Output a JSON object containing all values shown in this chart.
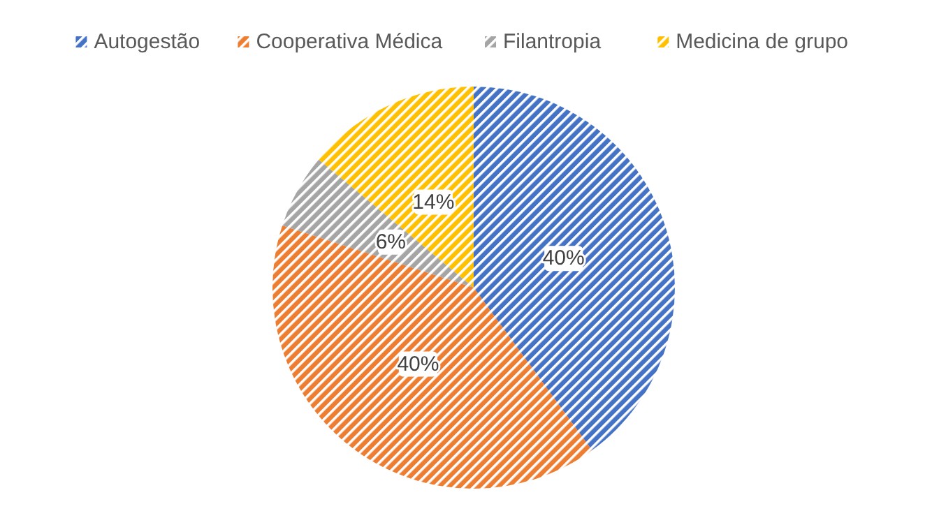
{
  "chart_data": {
    "type": "pie",
    "categories": [
      "Autogestão",
      "Cooperativa Médica",
      "Filantropia",
      "Medicina de grupo"
    ],
    "values": [
      40,
      40,
      6,
      14
    ],
    "colors": [
      "#4472c4",
      "#ed7d31",
      "#a5a5a5",
      "#ffc000"
    ],
    "value_labels": [
      "40%",
      "40%",
      "6%",
      "14%"
    ],
    "legend": "top"
  }
}
